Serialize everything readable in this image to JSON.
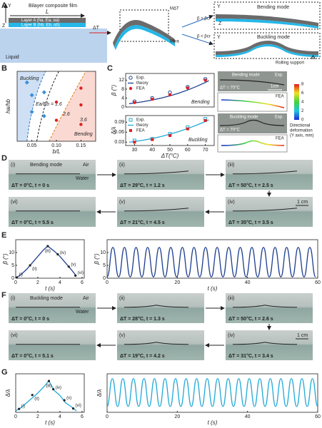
{
  "panel_labels": [
    "A",
    "B",
    "C",
    "D",
    "E",
    "F",
    "G"
  ],
  "A": {
    "film": "Bilayer composite film",
    "length": "L",
    "y_axis": "Y",
    "z_axis": "Z",
    "layer_a": "Layer A (ha, Ea, αa)",
    "layer_b": "Layer B (hb, Eb, αb)",
    "liquid": "Liquid",
    "delta_t": "ΔT",
    "m_dt": "MΔT",
    "m_wa": "Mwa",
    "beta_gt": "β > βcr",
    "beta_lt": "β < βcr",
    "bending": "Bending mode",
    "buckling": "Buckling mode",
    "support": "Rolling support"
  },
  "c_photos": {
    "bending": "Bending mode",
    "exp": "Exp.",
    "temp": "ΔT = 70°C",
    "scale": "1cm",
    "fea": "FEA",
    "buckling": "Buckling mode",
    "colorbar_ticks": [
      0,
      2,
      4,
      6,
      8
    ],
    "colorbar_label": [
      "Directional",
      "deformation",
      "(Y axis, mm)"
    ]
  },
  "D": {
    "mode": "Bending mode",
    "air": "Air",
    "water": "Water",
    "scale": "1 cm",
    "tiles": [
      {
        "id": "(i)",
        "caption": "ΔT = 0°C, t = 0 s"
      },
      {
        "id": "(ii)",
        "caption": "ΔT = 29°C, t = 1.2 s"
      },
      {
        "id": "(iii)",
        "caption": "ΔT = 50°C, t = 2.5 s"
      },
      {
        "id": "(iv)",
        "caption": "ΔT = 35°C, t = 3.5 s"
      },
      {
        "id": "(v)",
        "caption": "ΔT = 21°C, t = 4.5 s"
      },
      {
        "id": "(vi)",
        "caption": "ΔT = 0°C, t = 5.5 s"
      }
    ]
  },
  "F": {
    "mode": "Buckling mode",
    "air": "Air",
    "water": "Water",
    "scale": "1 cm",
    "tiles": [
      {
        "id": "(i)",
        "caption": "ΔT = 0°C, t = 0 s"
      },
      {
        "id": "(ii)",
        "caption": "ΔT = 28°C, t = 1.3 s"
      },
      {
        "id": "(iii)",
        "caption": "ΔT = 50°C, t = 2.6 s"
      },
      {
        "id": "(iv)",
        "caption": "ΔT = 31°C, t = 3.4 s"
      },
      {
        "id": "(v)",
        "caption": "ΔT = 19°C, t = 4.2 s"
      },
      {
        "id": "(vi)",
        "caption": "ΔT = 0°C, t = 5.1 s"
      }
    ]
  },
  "chart_data": [
    {
      "type": "scatter",
      "xlabel": "b/L",
      "ylabel": "ha/hb",
      "xlim": [
        0.02,
        0.18
      ],
      "ylim": [
        0,
        5
      ],
      "xticks": [
        0.05,
        {
          "value": 0.1,
          "label": "0.10"
        },
        0.15
      ],
      "annotations": [
        "Buckling",
        "Bending",
        "Ea/Eb = 1.6",
        "2.6",
        "3.6"
      ],
      "series": [
        {
          "color": "#3b8fd8",
          "marker": "diamond",
          "x": [
            0.04,
            0.05,
            0.05,
            0.075,
            0.075
          ],
          "values": [
            4.2,
            3.3,
            2.1,
            3.5,
            1.8
          ]
        },
        {
          "color": "#e02020",
          "marker": "circle",
          "x": [
            0.1,
            0.1,
            0.15,
            0.15,
            0.15
          ],
          "values": [
            2.8,
            1.5,
            3.8,
            2.6,
            1.2
          ]
        }
      ]
    },
    {
      "type": "line",
      "ylabel": "β (°)",
      "xlim": [
        25,
        75
      ],
      "ylim": [
        0,
        15
      ],
      "yticks": [
        0,
        4,
        8,
        12
      ],
      "legend": true,
      "annotations": [
        "Bending"
      ],
      "series": [
        {
          "name": "Exp.",
          "color": "#1f3f8f",
          "marker": "circle-open",
          "x": [
            30,
            40,
            50,
            60,
            70
          ],
          "values": [
            2.5,
            4,
            6.5,
            9,
            12.5
          ]
        },
        {
          "name": "theory",
          "color": "#1f3f8f",
          "marker": "line",
          "x": [
            27,
            30,
            35,
            40,
            45,
            50,
            55,
            60,
            65,
            70,
            72
          ],
          "values": [
            1.5,
            1.8,
            2.4,
            3.1,
            4,
            5,
            6.2,
            7.6,
            9.2,
            11,
            11.8
          ]
        },
        {
          "name": "FEA",
          "color": "#e02020",
          "marker": "circle",
          "x": [
            30,
            40,
            50,
            60,
            70
          ],
          "values": [
            2,
            3.5,
            5.5,
            8.5,
            12
          ]
        }
      ]
    },
    {
      "type": "line",
      "xlabel": "ΔT(°C)",
      "ylabel": "δ/λ",
      "xlim": [
        25,
        75
      ],
      "ylim": [
        0.02,
        0.11
      ],
      "xticks": [
        30,
        40,
        50,
        60,
        70
      ],
      "yticks": [
        0.03,
        0.06,
        0.09
      ],
      "legend": true,
      "annotations": [
        "Buckling"
      ],
      "series": [
        {
          "name": "Exp.",
          "color": "#22a9d6",
          "marker": "square-open",
          "x": [
            30,
            40,
            50,
            60,
            70
          ],
          "values": [
            0.035,
            0.04,
            0.055,
            0.075,
            0.1
          ]
        },
        {
          "name": "theory",
          "color": "#22a9d6",
          "marker": "line",
          "x": [
            27,
            30,
            35,
            40,
            45,
            50,
            55,
            60,
            65,
            70,
            72
          ],
          "values": [
            0.03,
            0.032,
            0.036,
            0.041,
            0.047,
            0.054,
            0.062,
            0.071,
            0.081,
            0.092,
            0.097
          ]
        },
        {
          "name": "FEA",
          "color": "#e02020",
          "marker": "square",
          "x": [
            30,
            40,
            50,
            60,
            70
          ],
          "values": [
            0.03,
            0.038,
            0.05,
            0.07,
            0.095
          ]
        }
      ]
    },
    {
      "type": "line",
      "xlabel": "t (s)",
      "ylabel": "β (°)",
      "xlim": [
        0,
        6.2
      ],
      "ylim": [
        0,
        15
      ],
      "xticks": [
        0,
        2,
        4,
        6
      ],
      "yticks": [
        0,
        5,
        10
      ],
      "series": [
        {
          "color": "#1f3f8f",
          "marker": "line",
          "x": [
            0,
            0.5,
            1,
            1.5,
            2,
            2.5,
            2.9,
            3.5,
            4,
            4.5,
            5,
            5.5
          ],
          "values": [
            0,
            1.5,
            3.5,
            6,
            8.5,
            11,
            12.5,
            10.5,
            8.5,
            6,
            3.5,
            0.8
          ]
        },
        {
          "color": "#222",
          "marker": "dot",
          "x": [
            0.1,
            1.3,
            2.9,
            3.8,
            4.8,
            5.4
          ],
          "values": [
            0.3,
            5,
            12.5,
            9.3,
            4.5,
            1
          ],
          "point_labels": [
            "(i)",
            "(ii)",
            "(iii)",
            "(iv)",
            "(v)",
            "(vi)"
          ]
        }
      ]
    },
    {
      "type": "line",
      "xlabel": "t (s)",
      "ylabel": "β (°)",
      "xlim": [
        0,
        60
      ],
      "ylim": [
        0,
        15
      ],
      "xticks": [
        0,
        20,
        40,
        60
      ],
      "yticks": [
        0,
        5,
        10
      ],
      "series": [
        {
          "color": "#1f3f8f",
          "marker": "line",
          "x": [
            0,
            1.65,
            3.3,
            4.95,
            6.6,
            8.25,
            9.9,
            11.55,
            13.2,
            14.85,
            16.5,
            18.15,
            19.8,
            21.45,
            23.1,
            24.75,
            26.4,
            28.05,
            29.7,
            31.35,
            33,
            34.65,
            36.3,
            37.95,
            39.6,
            41.25,
            42.9,
            44.55,
            46.2,
            47.85,
            49.5,
            51.15,
            52.8,
            54.45,
            56.1,
            57.75,
            59.4
          ],
          "values": [
            0.5,
            12,
            0.5,
            12,
            0.5,
            12,
            0.5,
            12,
            0.5,
            12,
            0.5,
            12,
            0.5,
            12,
            0.5,
            12,
            0.5,
            12,
            0.5,
            12,
            0.5,
            12,
            0.5,
            12,
            0.5,
            12,
            0.5,
            12,
            0.5,
            12,
            0.5,
            12,
            0.5,
            12,
            0.5,
            12,
            0.5
          ]
        }
      ]
    },
    {
      "type": "line",
      "xlabel": "t (s)",
      "ylabel": "δ/λ",
      "xlim": [
        0,
        6.2
      ],
      "ylim": [
        0,
        0.08
      ],
      "xticks": [
        0,
        2,
        4,
        6
      ],
      "series": [
        {
          "color": "#22a9d6",
          "marker": "line",
          "x": [
            0,
            0.5,
            1,
            1.5,
            2,
            2.5,
            3,
            3.5,
            4,
            4.5,
            5,
            5.5
          ],
          "values": [
            0.003,
            0.01,
            0.02,
            0.03,
            0.04,
            0.052,
            0.065,
            0.045,
            0.035,
            0.02,
            0.012,
            0.003
          ]
        },
        {
          "color": "#222",
          "marker": "dot",
          "x": [
            0.3,
            1.5,
            3,
            3.4,
            4.4,
            5.2
          ],
          "values": [
            0.007,
            0.036,
            0.065,
            0.048,
            0.025,
            0.008
          ],
          "point_labels": [
            "(i)",
            "(ii)",
            "(iii)",
            "(iv)",
            "(v)",
            "(vi)"
          ]
        }
      ]
    },
    {
      "type": "line",
      "xlabel": "t (s)",
      "ylabel": "δ/λ",
      "xlim": [
        0,
        60
      ],
      "ylim": [
        0,
        0.08
      ],
      "xticks": [
        0,
        20,
        40,
        60
      ],
      "series": [
        {
          "color": "#22a9d6",
          "marker": "line",
          "x": [
            0,
            1.5,
            3,
            4.5,
            6,
            7.5,
            9,
            10.5,
            12,
            13.5,
            15,
            16.5,
            18,
            19.5,
            21,
            22.5,
            24,
            25.5,
            27,
            28.5,
            30,
            31.5,
            33,
            34.5,
            36,
            37.5,
            39,
            40.5,
            42,
            43.5,
            45,
            46.5,
            48,
            49.5,
            51,
            52.5,
            54,
            55.5,
            57,
            58.5,
            60
          ],
          "values": [
            0.012,
            0.07,
            0.012,
            0.07,
            0.012,
            0.07,
            0.012,
            0.07,
            0.012,
            0.07,
            0.012,
            0.07,
            0.012,
            0.07,
            0.012,
            0.07,
            0.012,
            0.07,
            0.012,
            0.07,
            0.012,
            0.07,
            0.012,
            0.07,
            0.012,
            0.07,
            0.012,
            0.07,
            0.012,
            0.07,
            0.012,
            0.07,
            0.012,
            0.07,
            0.012,
            0.07,
            0.012,
            0.07,
            0.012,
            0.07,
            0.012
          ]
        }
      ]
    }
  ]
}
